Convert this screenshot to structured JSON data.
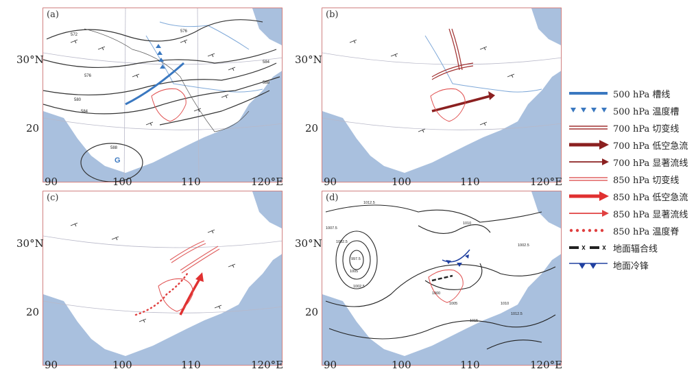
{
  "panels": [
    {
      "label": "(a)"
    },
    {
      "label": "(b)"
    },
    {
      "label": "(c)"
    },
    {
      "label": "(d)"
    }
  ],
  "axis_ticks": {
    "lat": [
      "30°N",
      "20"
    ],
    "lon": [
      "90",
      "100",
      "110",
      "120°E"
    ]
  },
  "contour_labels_a": [
    "572",
    "576",
    "580",
    "584",
    "588",
    "588",
    "584",
    "576",
    "G"
  ],
  "contour_labels_d": [
    "1012.5",
    "1007.5",
    "1002.5",
    "997.5",
    "1005",
    "1010",
    "1002.5",
    "1000",
    "1005",
    "1012.5",
    "1010",
    "1015",
    "1002.5"
  ],
  "legend": [
    {
      "label": "500 hPa 槽线",
      "symbol": "trough-line",
      "color": "#3a78c0"
    },
    {
      "label": "500 hPa 温度槽",
      "symbol": "temperature-trough",
      "color": "#3a78c0"
    },
    {
      "label": "700 hPa 切变线",
      "symbol": "shear-line-double",
      "color": "#a03030"
    },
    {
      "label": "700 hPa 低空急流",
      "symbol": "jet-thick-arrow",
      "color": "#8b2020"
    },
    {
      "label": "700 hPa 显著流线",
      "symbol": "streamline-arrow",
      "color": "#8b2020"
    },
    {
      "label": "850 hPa 切变线",
      "symbol": "shear-line-double",
      "color": "#e06060"
    },
    {
      "label": "850 hPa 低空急流",
      "symbol": "jet-thick-arrow",
      "color": "#e03030"
    },
    {
      "label": "850 hPa 显著流线",
      "symbol": "streamline-arrow",
      "color": "#e04040"
    },
    {
      "label": "850 hPa 温度脊",
      "symbol": "temperature-ridge-dots",
      "color": "#e04040"
    },
    {
      "label": "地面辐合线",
      "symbol": "convergence-line",
      "color": "#222222"
    },
    {
      "label": "地面冷锋",
      "symbol": "cold-front",
      "color": "#2040a0"
    }
  ],
  "colors": {
    "sea": "#a9c0de",
    "frame": "#d08080",
    "basin_outline": "#e05050",
    "river": "#7ea8d8"
  }
}
